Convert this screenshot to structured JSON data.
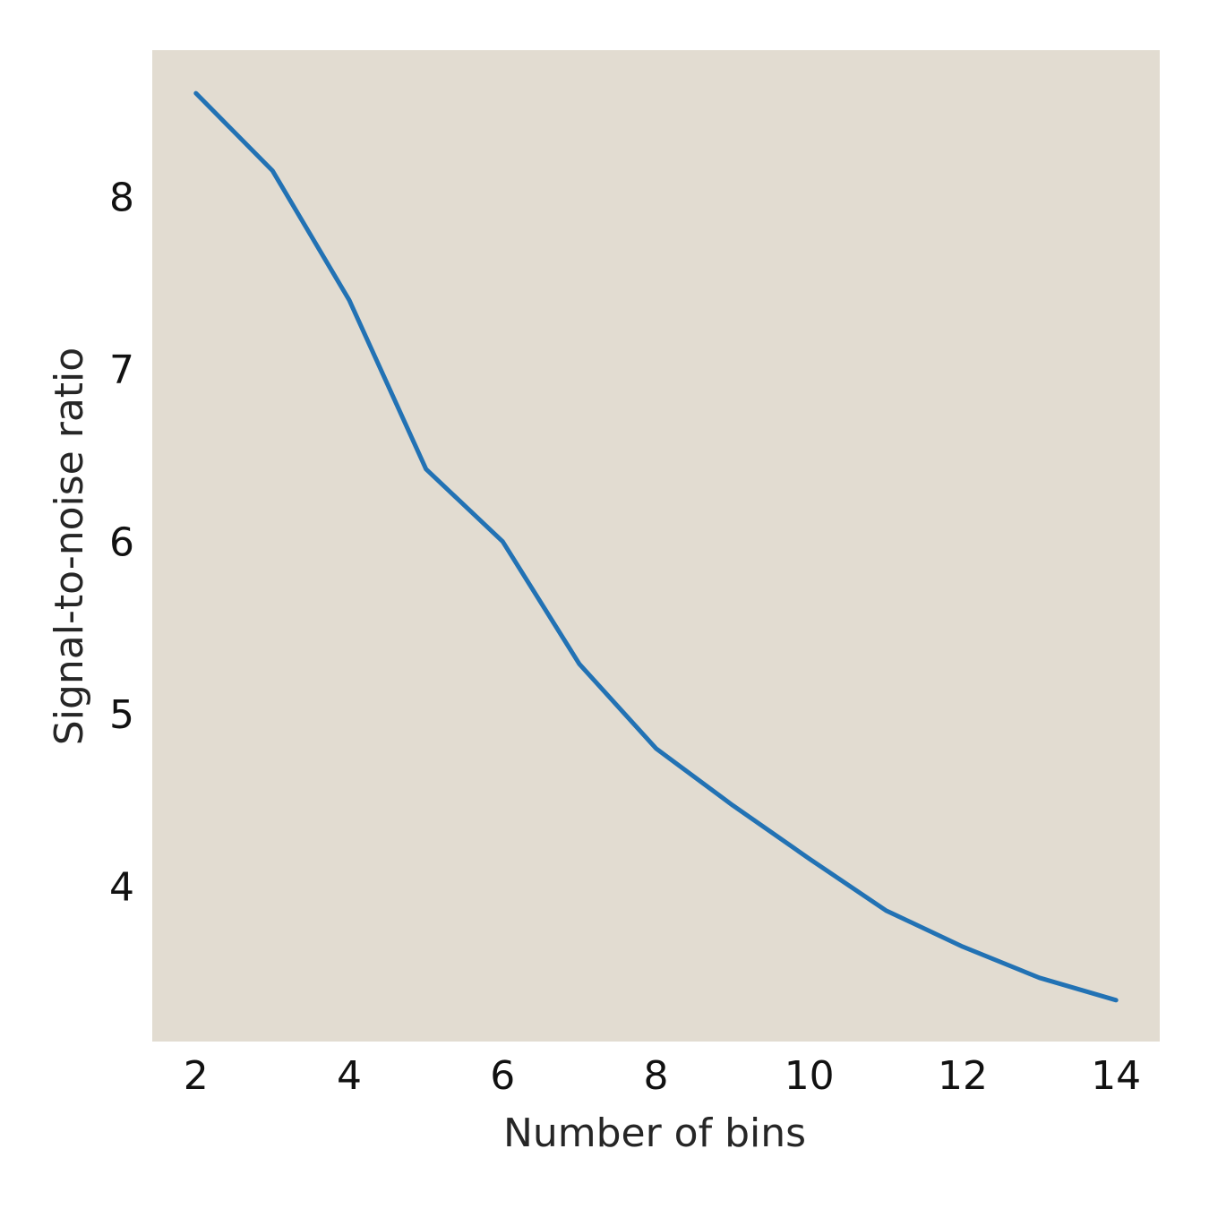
{
  "chart_data": {
    "type": "line",
    "title": "",
    "xlabel": "Number of bins",
    "ylabel": "Signal-to-noise ratio",
    "xlim": [
      1.43,
      14.57
    ],
    "ylim": [
      3.1,
      8.85
    ],
    "x_ticks": [
      2,
      4,
      6,
      8,
      10,
      12,
      14
    ],
    "x_tick_labels": [
      "2",
      "4",
      "6",
      "8",
      "10",
      "12",
      "14"
    ],
    "y_ticks": [
      4,
      5,
      6,
      7,
      8
    ],
    "y_tick_labels": [
      "4",
      "5",
      "6",
      "7",
      "8"
    ],
    "grid": false,
    "background_color": "#e2dcd1",
    "series": [
      {
        "color": "#2272b4",
        "x": [
          2,
          3,
          4,
          5,
          6,
          7,
          8,
          9,
          10,
          11,
          12,
          13,
          14
        ],
        "y": [
          8.6,
          8.15,
          7.4,
          6.42,
          6.0,
          5.29,
          4.8,
          4.47,
          4.16,
          3.86,
          3.65,
          3.47,
          3.34
        ]
      }
    ]
  }
}
